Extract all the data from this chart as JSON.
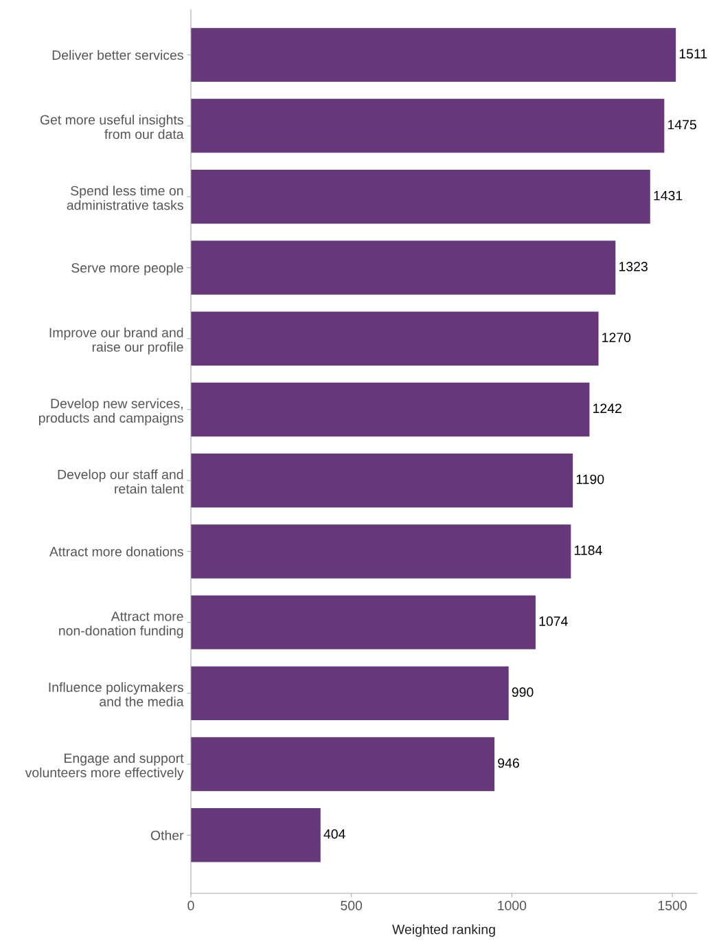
{
  "chart_data": {
    "type": "bar",
    "orientation": "horizontal",
    "xlabel": "Weighted ranking",
    "categories": [
      "Deliver better services",
      "Get more useful insights\nfrom our data",
      "Spend less time on\nadministrative tasks",
      "Serve more people",
      "Improve our brand and\nraise our profile",
      "Develop new services,\nproducts and campaigns",
      "Develop our staff and\nretain talent",
      "Attract more donations",
      "Attract more\nnon-donation funding",
      "Influence policymakers\nand the media",
      "Engage and support\nvolunteers more effectively",
      "Other"
    ],
    "values": [
      1511,
      1475,
      1431,
      1323,
      1270,
      1242,
      1190,
      1184,
      1074,
      990,
      946,
      404
    ],
    "color": "#663779",
    "data_labels": true,
    "xlim": [
      0,
      1577
    ],
    "xticks": [
      0,
      500,
      1000,
      1500
    ]
  }
}
